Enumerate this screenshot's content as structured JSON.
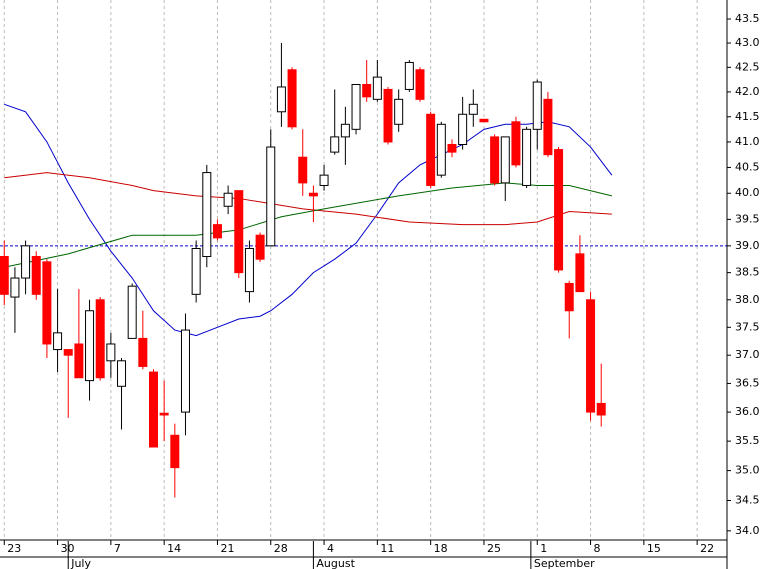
{
  "chart_data": {
    "type": "candlestick",
    "ylog": true,
    "ylim": [
      33.85,
      43.9
    ],
    "yticks": [
      {
        "value": 34,
        "label": "34.0"
      },
      34.5,
      {
        "value": 35,
        "label": "35.0"
      },
      35.5,
      {
        "value": 36,
        "label": "36.0"
      },
      36.5,
      {
        "value": 37,
        "label": "37.0"
      },
      37.5,
      {
        "value": 38,
        "label": "38.0"
      },
      38.5,
      {
        "value": 39,
        "label": "39.0"
      },
      39.5,
      {
        "value": 40,
        "label": "40.0"
      },
      40.5,
      {
        "value": 41,
        "label": "41.0"
      },
      41.5,
      {
        "value": 42,
        "label": "42.0"
      },
      42.5,
      {
        "value": 43,
        "label": "43.0"
      },
      43.5
    ],
    "xlim": [
      -0.4,
      67.8
    ],
    "xticks": [
      {
        "value": 0,
        "label": "23"
      },
      {
        "value": 5,
        "label": "30"
      },
      {
        "value": 10,
        "label": "7"
      },
      {
        "value": 15,
        "label": "14"
      },
      {
        "value": 20,
        "label": "21"
      },
      {
        "value": 25,
        "label": "28"
      },
      {
        "value": 30,
        "label": "4"
      },
      {
        "value": 35,
        "label": "11"
      },
      {
        "value": 40,
        "label": "18"
      },
      {
        "value": 45,
        "label": "25"
      },
      {
        "value": 50,
        "label": "1"
      },
      {
        "value": 55,
        "label": "8"
      },
      {
        "value": 60,
        "label": "15"
      },
      {
        "value": 65,
        "label": "22"
      }
    ],
    "months": [
      {
        "value": 6,
        "label": "July"
      },
      {
        "value": 29,
        "label": "August"
      },
      {
        "value": 49.4,
        "label": "September"
      }
    ],
    "grid": true,
    "up_color": "#ffffff",
    "down_color": "#ff0000",
    "open": [
      38.8,
      38.05,
      38.4,
      38.8,
      38.7,
      37.1,
      37.1,
      37.2,
      36.55,
      38.0,
      36.9,
      36.45,
      37.3,
      37.3,
      36.7,
      35.98,
      35.6,
      36.0,
      38.1,
      38.8,
      39.4,
      39.75,
      40.05,
      38.15,
      39.2,
      39.0,
      41.6,
      42.45,
      40.7,
      40.0,
      40.15,
      40.8,
      41.1,
      41.25,
      42.15,
      41.85,
      42.05,
      41.35,
      42.05,
      42.45,
      41.55,
      40.35,
      40.95,
      40.95,
      41.55,
      41.45,
      41.1,
      40.2,
      41.4,
      40.15,
      41.25,
      41.85,
      40.85,
      38.3,
      38.85,
      38.0,
      36.15
    ],
    "high": [
      39.1,
      38.6,
      39.1,
      38.9,
      38.75,
      38.2,
      37.1,
      38.2,
      38.0,
      38.05,
      37.4,
      36.95,
      38.3,
      37.8,
      36.75,
      36.55,
      35.8,
      37.75,
      39.1,
      40.55,
      39.5,
      40.15,
      40.05,
      39.1,
      39.25,
      41.25,
      43.0,
      42.5,
      41.25,
      40.15,
      40.55,
      42.05,
      41.7,
      42.15,
      42.65,
      42.65,
      42.1,
      42.05,
      42.65,
      42.5,
      41.6,
      41.4,
      41.05,
      41.9,
      42.05,
      41.45,
      41.15,
      41.1,
      41.5,
      41.3,
      42.25,
      42.0,
      40.9,
      38.35,
      39.2,
      38.15,
      36.85
    ],
    "low": [
      37.9,
      37.4,
      38.1,
      38.0,
      36.95,
      36.7,
      35.9,
      36.6,
      36.2,
      36.55,
      36.6,
      35.7,
      37.3,
      36.75,
      35.4,
      35.5,
      34.55,
      35.6,
      37.95,
      38.6,
      39.1,
      39.6,
      38.4,
      37.95,
      38.7,
      39.0,
      41.3,
      41.25,
      39.95,
      39.45,
      40.05,
      40.75,
      40.55,
      41.15,
      41.8,
      41.8,
      40.95,
      41.2,
      42.0,
      41.8,
      40.1,
      40.3,
      40.7,
      40.85,
      41.3,
      41.4,
      40.15,
      39.85,
      40.5,
      40.1,
      40.85,
      40.7,
      38.5,
      37.3,
      38.15,
      35.85,
      35.75
    ],
    "close": [
      38.1,
      38.4,
      39.0,
      38.1,
      37.2,
      37.4,
      37.0,
      36.6,
      37.8,
      36.6,
      37.2,
      36.9,
      38.25,
      36.8,
      35.4,
      35.95,
      35.05,
      37.45,
      38.95,
      40.4,
      39.15,
      40.0,
      38.5,
      38.95,
      38.75,
      40.9,
      42.1,
      41.3,
      40.2,
      39.95,
      40.35,
      41.1,
      41.35,
      42.15,
      41.9,
      42.3,
      41.0,
      41.85,
      42.6,
      41.85,
      40.15,
      41.35,
      40.8,
      41.55,
      41.75,
      41.4,
      40.2,
      41.1,
      40.55,
      41.25,
      42.2,
      40.75,
      38.55,
      37.8,
      38.15,
      36.0,
      35.95
    ],
    "lines": [
      {
        "color": "#0000cc",
        "x": [
          0,
          2,
          4,
          6,
          8,
          10,
          12,
          14,
          16,
          18,
          20,
          22,
          24,
          25,
          27,
          29,
          31,
          33,
          35,
          37,
          39,
          41,
          43,
          45,
          47,
          49,
          51,
          53,
          55,
          57
        ],
        "values": [
          41.75,
          41.6,
          41.0,
          40.2,
          39.5,
          38.9,
          38.4,
          37.8,
          37.45,
          37.35,
          37.5,
          37.65,
          37.7,
          37.8,
          38.1,
          38.5,
          38.75,
          39.05,
          39.6,
          40.2,
          40.55,
          40.75,
          40.95,
          41.25,
          41.35,
          41.35,
          41.4,
          41.3,
          40.9,
          40.35
        ]
      },
      {
        "color": "#cc0000",
        "x": [
          0,
          4,
          8,
          12,
          14,
          18,
          22,
          28,
          33,
          38,
          43,
          47,
          50,
          53,
          57
        ],
        "values": [
          40.3,
          40.4,
          40.3,
          40.15,
          40.05,
          39.95,
          39.9,
          39.7,
          39.6,
          39.45,
          39.4,
          39.4,
          39.45,
          39.65,
          39.6
        ]
      },
      {
        "color": "#006600",
        "x": [
          0,
          6,
          12,
          18,
          22,
          26,
          30,
          37,
          42,
          47,
          50,
          53,
          57
        ],
        "values": [
          38.6,
          38.85,
          39.2,
          39.2,
          39.3,
          39.55,
          39.7,
          39.95,
          40.1,
          40.2,
          40.15,
          40.15,
          39.95
        ]
      }
    ],
    "hline": {
      "value": 39.0,
      "color": "#0000cc"
    }
  }
}
